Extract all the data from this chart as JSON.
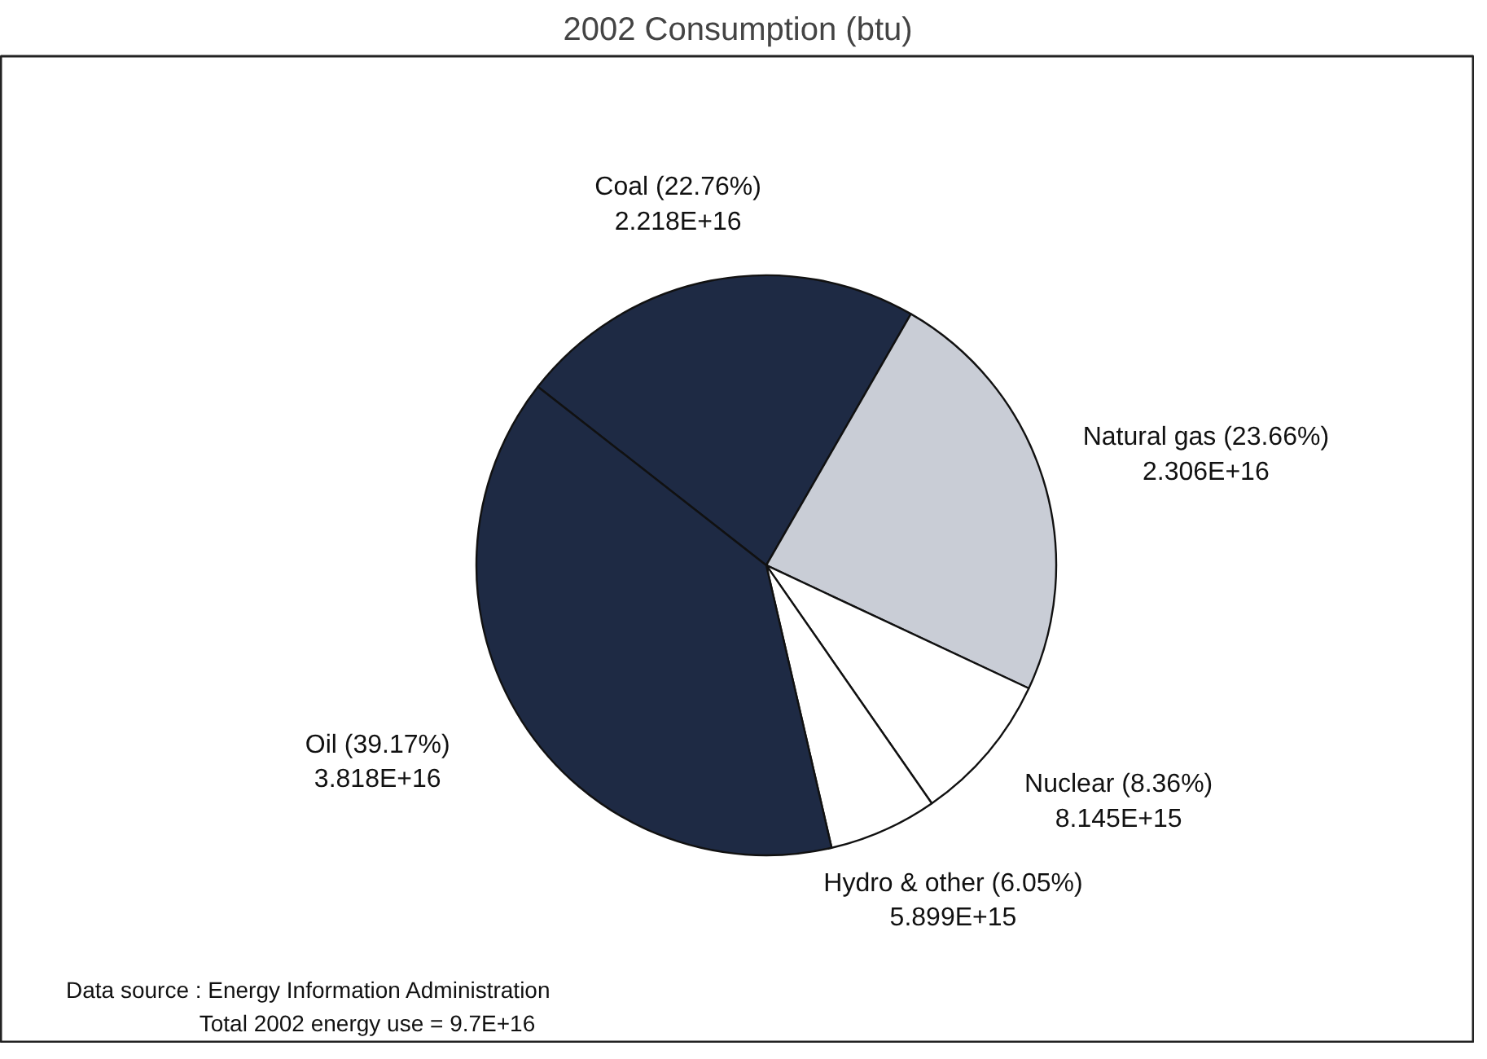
{
  "chart_data": {
    "type": "pie",
    "title": "2002 Consumption (btu)",
    "categories": [
      "Coal (22.76%)",
      "Natural gas (23.66%)",
      "Nuclear (8.36%)",
      "Hydro & other (6.05%)",
      "Oil (39.17%)"
    ],
    "values": [
      2.218e+16,
      2.306e+16,
      8145000000000000.0,
      5899000000000000.0,
      3.818e+16
    ],
    "value_labels": [
      "2.218E+16",
      "2.306E+16",
      "8.145E+15",
      "5.899E+15",
      "3.818E+16"
    ],
    "colors": [
      "#1e2a44",
      "#c9cdd6",
      "#ffffff",
      "#ffffff",
      "#1e2a44"
    ],
    "legend": false,
    "annotations": [
      "Data source : Energy Information Administration",
      "Total 2002 energy use = 9.7E+16"
    ]
  }
}
